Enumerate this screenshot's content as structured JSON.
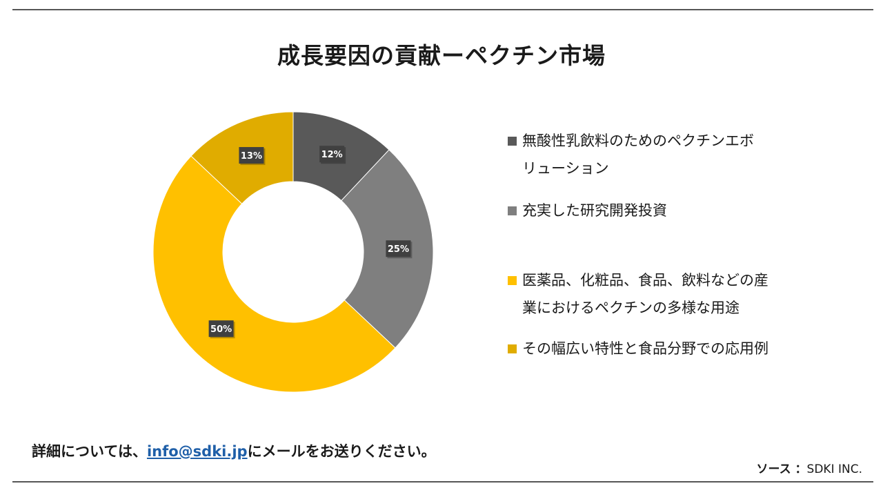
{
  "title": "成長要因の貢献ーペクチン市場",
  "chart_data": {
    "type": "pie",
    "donut": true,
    "title": "成長要因の貢献ーペクチン市場",
    "legend_position": "right",
    "slices": [
      {
        "label": "無酸性乳飲料のためのペクチンエボリューション",
        "value": 12,
        "data_label": "12%",
        "color": "#595959"
      },
      {
        "label": "充実した研究開発投資",
        "value": 25,
        "data_label": "25%",
        "color": "#7f7f7f"
      },
      {
        "label": "医薬品、化粧品、食品、飲料などの産業におけるペクチンの多様な用途",
        "value": 50,
        "data_label": "50%",
        "color": "#ffc000"
      },
      {
        "label": "その幅広い特性と食品分野での応用例",
        "value": 13,
        "data_label": "13%",
        "color": "#e0ac00"
      }
    ]
  },
  "legend": {
    "items": [
      {
        "lines": [
          "無酸性乳飲料のためのペクチンエボ",
          "リューション"
        ]
      },
      {
        "lines": [
          "充実した研究開発投資"
        ]
      },
      {
        "lines": [
          "医薬品、化粧品、食品、飲料などの産",
          "業におけるペクチンの多様な用途"
        ]
      },
      {
        "lines": [
          "その幅広い特性と食品分野での応用例"
        ]
      }
    ]
  },
  "footer": {
    "contact_prefix": "詳細については、",
    "contact_email": "info@sdki.jp",
    "contact_suffix": "にメールをお送りください。",
    "source_label": "ソース ：",
    "source_value": "SDKI INC."
  }
}
